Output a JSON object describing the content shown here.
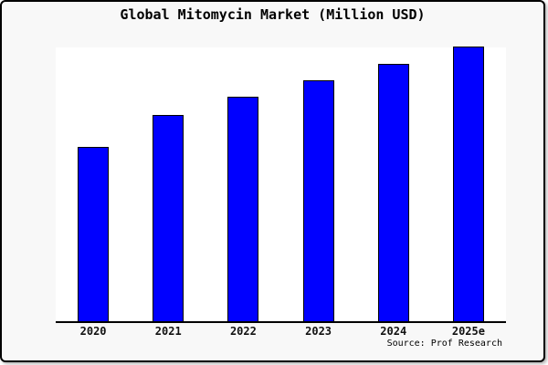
{
  "chart_data": {
    "type": "bar",
    "title": "Global Mitomycin Market (Million USD)",
    "categories": [
      "2020",
      "2021",
      "2022",
      "2023",
      "2024",
      "2025e"
    ],
    "values": [
      63.3,
      75.0,
      81.7,
      87.7,
      93.7,
      100
    ],
    "value_note": "no y-axis ticks, labels or gridlines are shown; values are relative estimates read from bar heights with 2025e = 100",
    "xlabel": "",
    "ylabel": "",
    "ylim": [
      0,
      100
    ],
    "grid": false,
    "legend": false,
    "bar_color": "#0000ff",
    "bar_border_color": "#000000",
    "plot_background": "#ffffff",
    "canvas_background": "#f8f8f8",
    "source_label": "Source: Prof Research"
  }
}
